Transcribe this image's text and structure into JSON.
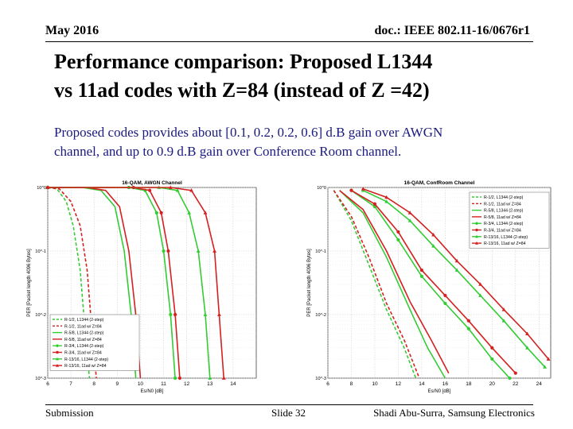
{
  "header": {
    "date": "May 2016",
    "doc_id": "doc.: IEEE 802.11-16/0676r1"
  },
  "title": {
    "line1": "Performance comparison: Proposed L1344",
    "line2": "vs 11ad codes with Z=84 (instead of Z =42)"
  },
  "subtitle": {
    "line1": "Proposed codes provides about [0.1,  0.2, 0.2, 0.6] d.B gain over AWGN",
    "line2": "channel, and up to 0.9 d.B gain over Conference Room channel."
  },
  "footer": {
    "left": "Submission",
    "center": "Slide 32",
    "right": "Shadi Abu-Surra, Samsung Electronics"
  },
  "colors": {
    "green": "#33cc33",
    "red": "#d42020",
    "grid": "#c8c8c8"
  },
  "chart_data": [
    {
      "type": "line",
      "title": "16-QAM, AWGN Channel",
      "xlabel": "Es/N0 [dB]",
      "ylabel": "PER [Packet length 4096 Bytes]",
      "xlim": [
        6,
        15
      ],
      "ylim": [
        0.001,
        1
      ],
      "yscale": "log",
      "x_ticks": [
        6,
        7,
        8,
        9,
        10,
        11,
        12,
        13,
        14
      ],
      "y_ticks": [
        "10^0",
        "10^-1",
        "10^-2",
        "10^-3"
      ],
      "legend_position": "bottom-left",
      "series": [
        {
          "name": "R-1/2, L1344 (2-step)",
          "color": "green",
          "dash": true,
          "marker": "none",
          "x": [
            6.0,
            6.4,
            6.8,
            7.1,
            7.4,
            7.6,
            7.8
          ],
          "y": [
            1,
            0.95,
            0.6,
            0.25,
            0.05,
            0.006,
            0.001
          ]
        },
        {
          "name": "R-1/2, 11ad w/ Z=84",
          "color": "red",
          "dash": true,
          "marker": "none",
          "x": [
            6.0,
            6.5,
            7.0,
            7.4,
            7.7,
            7.9,
            8.1
          ],
          "y": [
            1,
            0.95,
            0.6,
            0.25,
            0.05,
            0.006,
            0.001
          ]
        },
        {
          "name": "R-5/8, L1344 (2-step)",
          "color": "green",
          "dash": false,
          "marker": "none",
          "x": [
            6.0,
            7.5,
            8.3,
            8.9,
            9.3,
            9.6,
            9.8
          ],
          "y": [
            1,
            1,
            0.9,
            0.5,
            0.1,
            0.01,
            0.001
          ]
        },
        {
          "name": "R-5/8, 11ad w/ Z=84",
          "color": "red",
          "dash": false,
          "marker": "none",
          "x": [
            6.0,
            7.7,
            8.5,
            9.1,
            9.5,
            9.8,
            10.0
          ],
          "y": [
            1,
            1,
            0.9,
            0.5,
            0.1,
            0.01,
            0.001
          ]
        },
        {
          "name": "R-3/4, L1344 (2-step)",
          "color": "green",
          "dash": false,
          "marker": "circle",
          "x": [
            6.0,
            9.5,
            10.2,
            10.7,
            11.0,
            11.3,
            11.5
          ],
          "y": [
            1,
            1,
            0.9,
            0.4,
            0.1,
            0.01,
            0.001
          ]
        },
        {
          "name": "R-3/4, 11ad w/ Z=84",
          "color": "red",
          "dash": false,
          "marker": "circle",
          "x": [
            6.0,
            9.7,
            10.4,
            10.9,
            11.2,
            11.5,
            11.7
          ],
          "y": [
            1,
            1,
            0.9,
            0.4,
            0.1,
            0.01,
            0.001
          ]
        },
        {
          "name": "R-13/16, L1344 (2-step)",
          "color": "green",
          "dash": false,
          "marker": "triangle",
          "x": [
            6.0,
            10.8,
            11.6,
            12.1,
            12.5,
            12.8,
            13.0
          ],
          "y": [
            1,
            1,
            0.9,
            0.4,
            0.1,
            0.01,
            0.001
          ]
        },
        {
          "name": "R-13/16, 11ad w/ Z=84",
          "color": "red",
          "dash": false,
          "marker": "triangle",
          "x": [
            6.0,
            11.3,
            12.2,
            12.8,
            13.2,
            13.4,
            13.6
          ],
          "y": [
            1,
            1,
            0.9,
            0.4,
            0.1,
            0.01,
            0.001
          ]
        }
      ]
    },
    {
      "type": "line",
      "title": "16-QAM, ConfRoom Channel",
      "xlabel": "Es/N0 [dB]",
      "ylabel": "PER [Packet length 4096 Bytes]",
      "xlim": [
        6,
        25
      ],
      "ylim": [
        0.001,
        1
      ],
      "yscale": "log",
      "x_ticks": [
        6,
        8,
        10,
        12,
        14,
        16,
        18,
        20,
        22,
        24
      ],
      "y_ticks": [
        "10^0",
        "10^-1",
        "10^-2",
        "10^-3"
      ],
      "legend_position": "top-right",
      "series": [
        {
          "name": "R-1/2, L1344 (2-step)",
          "color": "green",
          "dash": true,
          "marker": "none",
          "x": [
            6.5,
            8,
            9.5,
            11,
            12.5,
            13.5
          ],
          "y": [
            0.9,
            0.3,
            0.06,
            0.012,
            0.003,
            0.001
          ]
        },
        {
          "name": "R-1/2, 11ad w/ Z=84",
          "color": "red",
          "dash": true,
          "marker": "none",
          "x": [
            6.5,
            8,
            9.5,
            11,
            12.5,
            13.8
          ],
          "y": [
            0.9,
            0.35,
            0.08,
            0.015,
            0.004,
            0.001
          ]
        },
        {
          "name": "R-5/8, L1344 (2-step)",
          "color": "green",
          "dash": false,
          "marker": "none",
          "x": [
            7,
            9,
            11,
            13,
            14.5,
            16
          ],
          "y": [
            0.9,
            0.4,
            0.08,
            0.012,
            0.003,
            0.001
          ]
        },
        {
          "name": "R-5/8, 11ad w/ Z=84",
          "color": "red",
          "dash": false,
          "marker": "none",
          "x": [
            7,
            9,
            11,
            13,
            14.8,
            16.3
          ],
          "y": [
            0.9,
            0.45,
            0.1,
            0.016,
            0.004,
            0.0012
          ]
        },
        {
          "name": "R-3/4, L1344 (2-step)",
          "color": "green",
          "dash": false,
          "marker": "circle",
          "x": [
            8,
            10,
            12,
            14,
            16,
            18,
            20,
            21.5
          ],
          "y": [
            0.9,
            0.5,
            0.15,
            0.04,
            0.015,
            0.006,
            0.002,
            0.001
          ]
        },
        {
          "name": "R-3/4, 11ad w/ Z=84",
          "color": "red",
          "dash": false,
          "marker": "circle",
          "x": [
            8,
            10,
            12,
            14,
            16,
            18,
            20,
            22
          ],
          "y": [
            0.9,
            0.55,
            0.2,
            0.05,
            0.02,
            0.008,
            0.003,
            0.0012
          ]
        },
        {
          "name": "R-13/16, L1344 (2-step)",
          "color": "green",
          "dash": false,
          "marker": "triangle",
          "x": [
            9,
            11,
            13,
            15,
            17,
            19,
            21,
            23,
            24.5
          ],
          "y": [
            0.9,
            0.6,
            0.3,
            0.12,
            0.05,
            0.02,
            0.008,
            0.003,
            0.0015
          ]
        },
        {
          "name": "R-13/16, 11ad w/ Z=84",
          "color": "red",
          "dash": false,
          "marker": "triangle",
          "x": [
            9,
            11,
            13,
            15,
            17,
            19,
            21,
            23,
            24.8
          ],
          "y": [
            0.95,
            0.7,
            0.4,
            0.18,
            0.07,
            0.03,
            0.012,
            0.005,
            0.002
          ]
        }
      ]
    }
  ]
}
